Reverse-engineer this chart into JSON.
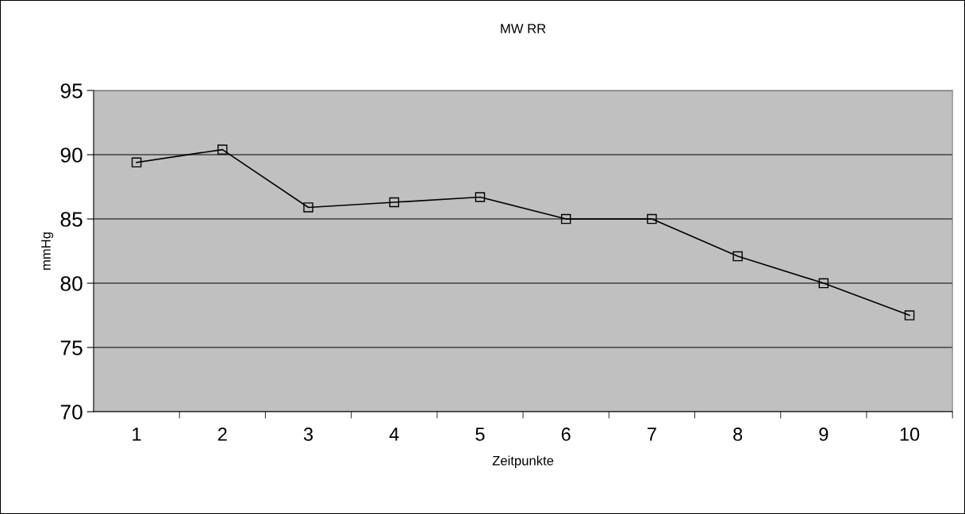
{
  "chart_data": {
    "type": "line",
    "title": "MW RR",
    "xlabel": "Zeitpunkte",
    "ylabel": "mmHg",
    "categories": [
      "1",
      "2",
      "3",
      "4",
      "5",
      "6",
      "7",
      "8",
      "9",
      "10"
    ],
    "series": [
      {
        "color": "#000000",
        "values": [
          89.4,
          90.4,
          85.9,
          86.3,
          86.7,
          85.0,
          85.0,
          82.1,
          80.0,
          77.5
        ]
      }
    ],
    "ylim": [
      70,
      95
    ],
    "yticks": [
      70,
      75,
      80,
      85,
      90,
      95
    ],
    "grid": "y",
    "marker": "square",
    "line_style": "solid",
    "legend": false
  }
}
